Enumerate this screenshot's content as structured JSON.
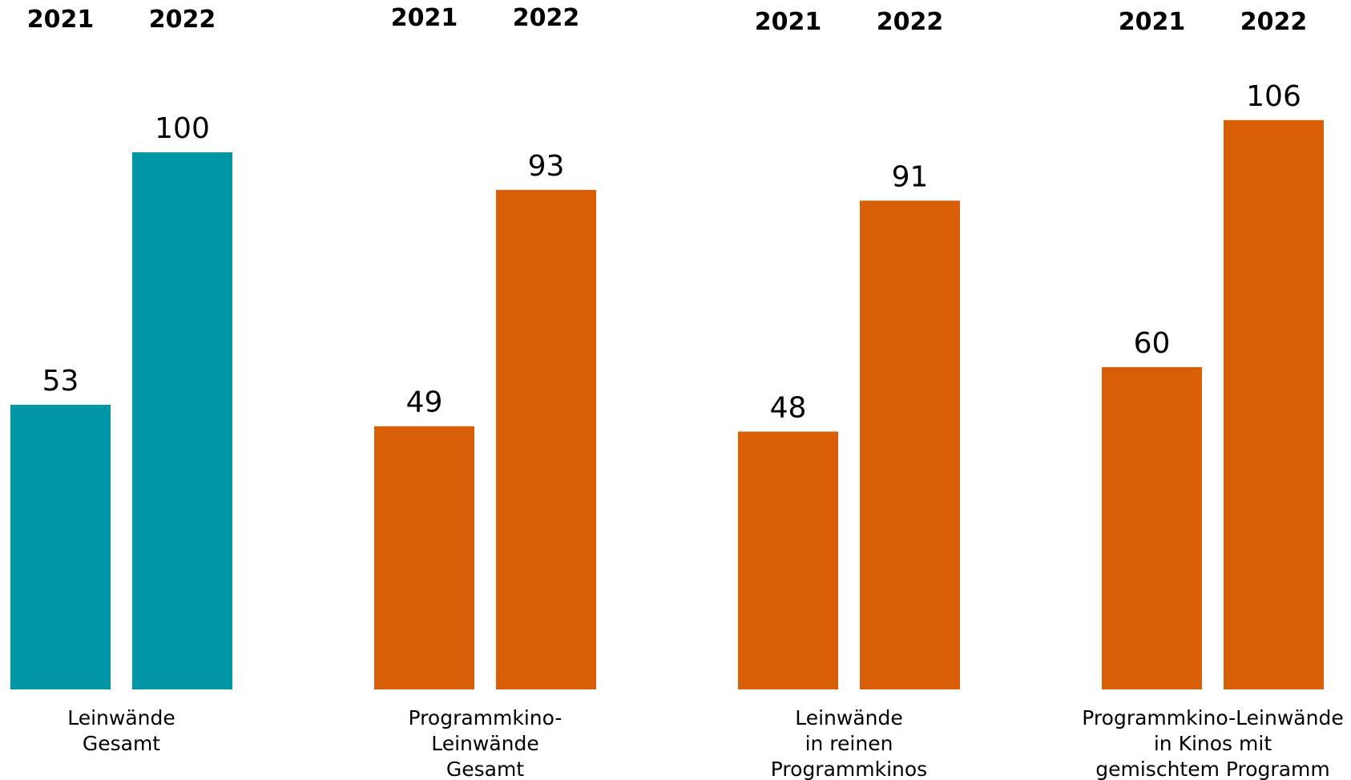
{
  "chart_data": {
    "type": "bar",
    "groups": [
      {
        "label_lines": [
          "Leinwände",
          "Gesamt"
        ],
        "years": [
          "2021",
          "2022"
        ],
        "values": [
          53,
          100
        ],
        "color": "#0097A7"
      },
      {
        "label_lines": [
          "Programmkino-",
          "Leinwände",
          "Gesamt"
        ],
        "years": [
          "2021",
          "2022"
        ],
        "values": [
          49,
          93
        ],
        "color": "#D95F07"
      },
      {
        "label_lines": [
          "Leinwände",
          "in reinen",
          "Programmkinos"
        ],
        "years": [
          "2021",
          "2022"
        ],
        "values": [
          48,
          91
        ],
        "color": "#D95F07"
      },
      {
        "label_lines": [
          "Programmkino-Leinwände",
          "in Kinos mit",
          "gemischtem Programm"
        ],
        "years": [
          "2021",
          "2022"
        ],
        "values": [
          60,
          106
        ],
        "color": "#D95F07"
      }
    ],
    "title": "",
    "xlabel": "",
    "ylabel": "",
    "ylim": [
      0,
      106
    ],
    "grid": false,
    "legend": "none"
  }
}
